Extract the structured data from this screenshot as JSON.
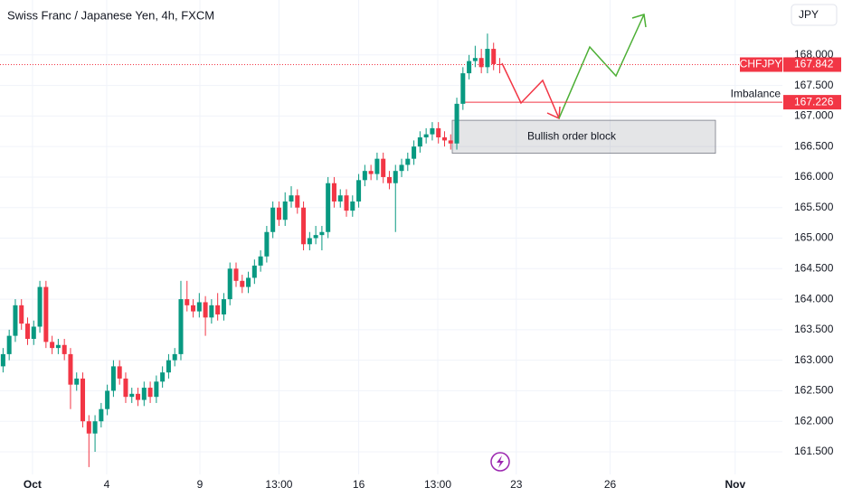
{
  "chart_data": {
    "type": "candlestick",
    "title": "Swiss Franc / Japanese Yen, 4h, FXCM",
    "currency": "JPY",
    "symbol": "CHFJPY",
    "last_price": 167.842,
    "up_color": "#089981",
    "down_color": "#f23645",
    "grid": true,
    "ylim": [
      161.13,
      168.9
    ],
    "yticks": [
      {
        "value": 161.5,
        "label": "161.500"
      },
      {
        "value": 162,
        "label": "162.000"
      },
      {
        "value": 162.5,
        "label": "162.500"
      },
      {
        "value": 163,
        "label": "163.000"
      },
      {
        "value": 163.5,
        "label": "163.500"
      },
      {
        "value": 164,
        "label": "164.000"
      },
      {
        "value": 164.5,
        "label": "164.500"
      },
      {
        "value": 165,
        "label": "165.000"
      },
      {
        "value": 165.5,
        "label": "165.500"
      },
      {
        "value": 166,
        "label": "166.000"
      },
      {
        "value": 166.5,
        "label": "166.500"
      },
      {
        "value": 167,
        "label": "167.000"
      },
      {
        "value": 167.5,
        "label": "167.500"
      },
      {
        "value": 168,
        "label": "168.000"
      }
    ],
    "xlim": [
      -0.5,
      127.1
    ],
    "xticks": [
      {
        "value": 4.8,
        "label": "Oct"
      },
      {
        "value": 16.9,
        "label": "4"
      },
      {
        "value": 32.1,
        "label": "9"
      },
      {
        "value": 45,
        "label": "13:00"
      },
      {
        "value": 58,
        "label": "16"
      },
      {
        "value": 70.9,
        "label": "13:00"
      },
      {
        "value": 83.7,
        "label": "23"
      },
      {
        "value": 99,
        "label": "26"
      },
      {
        "value": 119.4,
        "label": "Nov"
      }
    ],
    "imbalance": {
      "label": "Imbalance",
      "value": 167.226
    },
    "order_block": {
      "label": "Bullish order block",
      "top": 166.93,
      "bottom": 166.39
    },
    "open": [
      162.9,
      163.1,
      163.4,
      163.9,
      163.6,
      163.35,
      163.55,
      164.2,
      163.3,
      163.2,
      163.25,
      163.1,
      162.6,
      162.7,
      162.0,
      161.8,
      162.0,
      162.2,
      162.5,
      162.9,
      162.7,
      162.4,
      162.45,
      162.35,
      162.55,
      162.4,
      162.65,
      162.8,
      163.0,
      163.1,
      164.0,
      163.9,
      163.8,
      163.95,
      163.7,
      163.9,
      163.75,
      164.0,
      164.5,
      164.3,
      164.2,
      164.35,
      164.55,
      164.7,
      165.1,
      165.5,
      165.3,
      165.6,
      165.7,
      165.5,
      164.9,
      165.0,
      165.05,
      165.1,
      165.9,
      165.6,
      165.7,
      165.45,
      165.6,
      165.95,
      166.1,
      166.05,
      166.3,
      166.0,
      165.9,
      166.1,
      166.2,
      166.3,
      166.5,
      166.65,
      166.7,
      166.8,
      166.65,
      166.6,
      166.55,
      167.2,
      167.7,
      167.9,
      167.95,
      167.8,
      168.1,
      167.85
    ],
    "high": [
      163.2,
      163.5,
      164.0,
      164.0,
      163.7,
      163.65,
      164.3,
      164.3,
      163.4,
      163.35,
      163.35,
      163.2,
      162.8,
      162.8,
      162.1,
      162.1,
      162.3,
      162.6,
      163.0,
      163.0,
      162.8,
      162.55,
      162.55,
      162.65,
      162.65,
      162.75,
      162.9,
      163.1,
      163.2,
      164.3,
      164.3,
      164.0,
      164.1,
      164.05,
      164.0,
      164.1,
      164.1,
      164.6,
      164.6,
      164.4,
      164.45,
      164.65,
      164.8,
      165.2,
      165.6,
      165.6,
      165.75,
      165.85,
      165.8,
      165.6,
      165.1,
      165.2,
      165.2,
      166.0,
      166.0,
      165.8,
      165.8,
      165.7,
      166.05,
      166.2,
      166.2,
      166.4,
      166.4,
      166.1,
      166.2,
      166.3,
      166.4,
      166.6,
      166.75,
      166.8,
      166.9,
      166.9,
      166.75,
      166.7,
      167.3,
      167.8,
      168.0,
      168.15,
      168.1,
      168.35,
      168.2,
      167.95
    ],
    "low": [
      162.8,
      163.0,
      163.3,
      163.5,
      163.25,
      163.25,
      163.45,
      163.2,
      163.1,
      163.1,
      163.0,
      162.2,
      162.5,
      161.9,
      161.25,
      161.5,
      161.9,
      162.1,
      162.4,
      162.6,
      162.3,
      162.3,
      162.25,
      162.25,
      162.3,
      162.3,
      162.55,
      162.7,
      162.9,
      163.0,
      163.8,
      163.7,
      163.7,
      163.4,
      163.6,
      163.65,
      163.65,
      163.9,
      164.2,
      164.1,
      164.1,
      164.25,
      164.45,
      164.6,
      165.0,
      165.2,
      165.2,
      165.5,
      165.4,
      164.8,
      164.8,
      164.9,
      164.8,
      165.0,
      165.5,
      165.5,
      165.35,
      165.35,
      165.5,
      165.85,
      165.95,
      165.95,
      165.9,
      165.8,
      165.1,
      166.0,
      166.1,
      166.2,
      166.4,
      166.55,
      166.6,
      166.55,
      166.5,
      166.45,
      166.45,
      167.1,
      167.6,
      167.8,
      167.7,
      167.7,
      167.75,
      167.7
    ],
    "close": [
      163.1,
      163.4,
      163.9,
      163.6,
      163.35,
      163.55,
      164.2,
      163.3,
      163.2,
      163.25,
      163.1,
      162.6,
      162.7,
      162.0,
      161.8,
      162.0,
      162.2,
      162.5,
      162.9,
      162.7,
      162.4,
      162.45,
      162.35,
      162.55,
      162.4,
      162.65,
      162.8,
      163.0,
      163.1,
      164.0,
      163.9,
      163.8,
      163.95,
      163.7,
      163.9,
      163.75,
      164.0,
      164.5,
      164.3,
      164.2,
      164.35,
      164.55,
      164.7,
      165.1,
      165.5,
      165.3,
      165.6,
      165.7,
      165.5,
      164.9,
      165.0,
      165.05,
      165.1,
      165.9,
      165.6,
      165.7,
      165.45,
      165.6,
      165.95,
      166.1,
      166.05,
      166.3,
      166.0,
      165.9,
      166.1,
      166.2,
      166.3,
      166.5,
      166.65,
      166.7,
      166.8,
      166.65,
      166.6,
      166.55,
      167.2,
      167.7,
      167.9,
      167.95,
      167.8,
      168.1,
      167.85,
      167.84
    ]
  }
}
